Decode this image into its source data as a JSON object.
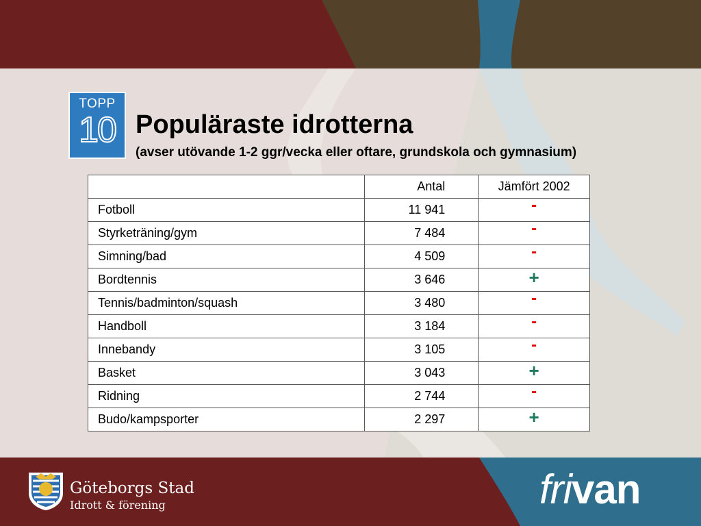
{
  "logo": {
    "top_label": "TOPP",
    "number": "10"
  },
  "header": {
    "title": "Populäraste idrotterna",
    "subtitle": "(avser utövande 1-2 ggr/vecka eller oftare, grundskola och gymnasium)"
  },
  "table": {
    "headers": [
      "",
      "Antal",
      "Jämfört 2002"
    ],
    "rows": [
      {
        "name": "Fotboll",
        "antal": "11 941",
        "change": "-"
      },
      {
        "name": "Styrketräning/gym",
        "antal": "7 484",
        "change": "-"
      },
      {
        "name": "Simning/bad",
        "antal": "4 509",
        "change": "-"
      },
      {
        "name": "Bordtennis",
        "antal": "3 646",
        "change": "+"
      },
      {
        "name": "Tennis/badminton/squash",
        "antal": "3 480",
        "change": "-"
      },
      {
        "name": "Handboll",
        "antal": "3 184",
        "change": "-"
      },
      {
        "name": "Innebandy",
        "antal": "3 105",
        "change": "-"
      },
      {
        "name": "Basket",
        "antal": "3 043",
        "change": "+"
      },
      {
        "name": "Ridning",
        "antal": "2 744",
        "change": "-"
      },
      {
        "name": "Budo/kampsporter",
        "antal": "2 297",
        "change": "+"
      }
    ]
  },
  "footer": {
    "org_name": "Göteborgs Stad",
    "org_dept": "Idrott & förening",
    "brand_prefix": "fri",
    "brand_suffix": "van"
  },
  "colors": {
    "top_band": "#6b1f1f",
    "top_right": "#54412a",
    "river": "#2f6e8d",
    "bottom_right": "#2f6e8d",
    "minus": "#e00000",
    "plus": "#1e7a5e",
    "logo_blue": "#2e7bbf"
  }
}
